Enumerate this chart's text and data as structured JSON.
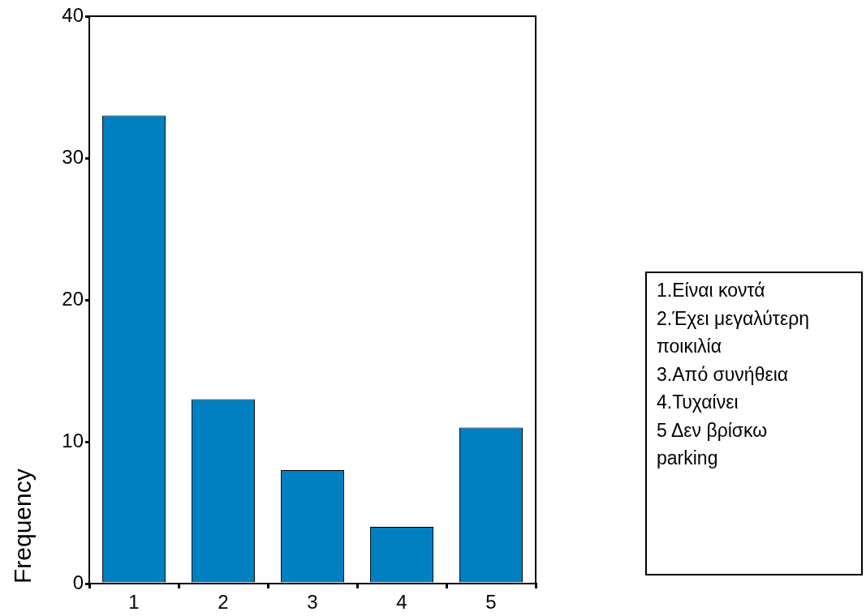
{
  "chart_data": {
    "type": "bar",
    "categories": [
      "1",
      "2",
      "3",
      "4",
      "5"
    ],
    "values": [
      33,
      13,
      8,
      4,
      11
    ],
    "color": "#0080c0",
    "ylabel": "Frequency",
    "ylim": [
      0,
      40
    ],
    "yticks": [
      0,
      10,
      20,
      30,
      40
    ],
    "annotations": [
      "1.Είναι κοντά",
      "2.Έχει μεγαλύτερη ποικιλία",
      "3.Από συνήθεια",
      "4.Τυχαίνει",
      "5 Δεν βρίσκω parking"
    ]
  }
}
